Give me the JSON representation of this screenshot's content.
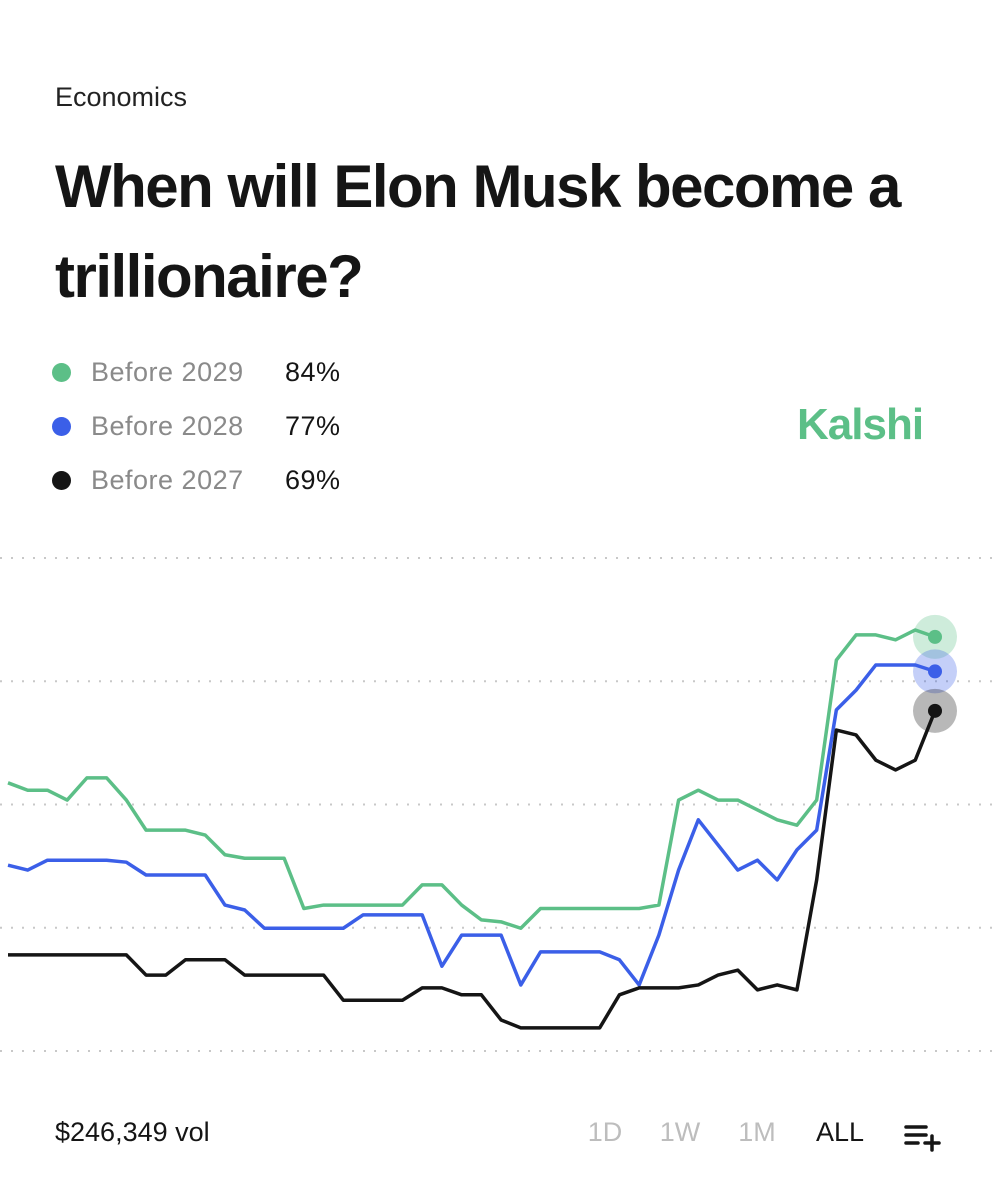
{
  "category": "Economics",
  "brand": "Kalshi",
  "volume": {
    "value": 246349,
    "label": "$246,349 vol"
  },
  "ranges": [
    "1D",
    "1W",
    "1M",
    "ALL"
  ],
  "active_range": 3,
  "chart_data": {
    "type": "line",
    "title": "When will Elon Musk become a trillionaire?",
    "ylim": [
      0,
      100
    ],
    "yticks": [
      0,
      25,
      50,
      75,
      100
    ],
    "grid": true,
    "series": [
      {
        "name": "Before 2029",
        "color": "#5cbf87",
        "current": {
          "value": 84,
          "label": "84%"
        },
        "values": [
          54.4,
          52.9,
          52.9,
          50.9,
          55.4,
          55.4,
          50.9,
          44.8,
          44.8,
          44.8,
          43.8,
          39.8,
          39.1,
          39.1,
          39.1,
          28.9,
          29.6,
          29.6,
          29.6,
          29.6,
          29.6,
          33.7,
          33.7,
          29.6,
          26.6,
          26.2,
          24.9,
          28.9,
          28.9,
          28.9,
          28.9,
          28.9,
          28.9,
          29.6,
          50.9,
          52.9,
          50.9,
          50.9,
          48.9,
          46.9,
          45.8,
          50.9,
          79.3,
          84.4,
          84.4,
          83.4,
          85.4,
          84
        ]
      },
      {
        "name": "Before 2028",
        "color": "#3b5fe8",
        "current": {
          "value": 77,
          "label": "77%"
        },
        "values": [
          37.7,
          36.7,
          38.7,
          38.7,
          38.7,
          38.7,
          38.3,
          35.7,
          35.7,
          35.7,
          35.7,
          29.6,
          28.6,
          24.9,
          24.9,
          24.9,
          24.9,
          24.9,
          27.6,
          27.6,
          27.6,
          27.6,
          17.2,
          23.5,
          23.5,
          23.5,
          13.4,
          20.1,
          20.1,
          20.1,
          20.1,
          18.5,
          13.4,
          23.5,
          36.7,
          46.9,
          41.8,
          36.7,
          38.7,
          34.7,
          40.8,
          44.8,
          69.2,
          73.2,
          78.3,
          78.3,
          78.3,
          77
        ]
      },
      {
        "name": "Before 2027",
        "color": "#151515",
        "current": {
          "value": 69,
          "label": "69%"
        },
        "values": [
          19.5,
          19.5,
          19.5,
          19.5,
          19.5,
          19.5,
          19.5,
          15.4,
          15.4,
          18.5,
          18.5,
          18.5,
          15.4,
          15.4,
          15.4,
          15.4,
          15.4,
          10.3,
          10.3,
          10.3,
          10.3,
          12.8,
          12.8,
          11.4,
          11.4,
          6.3,
          4.7,
          4.7,
          4.7,
          4.7,
          4.7,
          11.4,
          12.8,
          12.8,
          12.8,
          13.4,
          15.4,
          16.4,
          12.4,
          13.4,
          12.4,
          34.7,
          65.1,
          64.1,
          59.0,
          57.0,
          59.0,
          69
        ]
      }
    ]
  }
}
